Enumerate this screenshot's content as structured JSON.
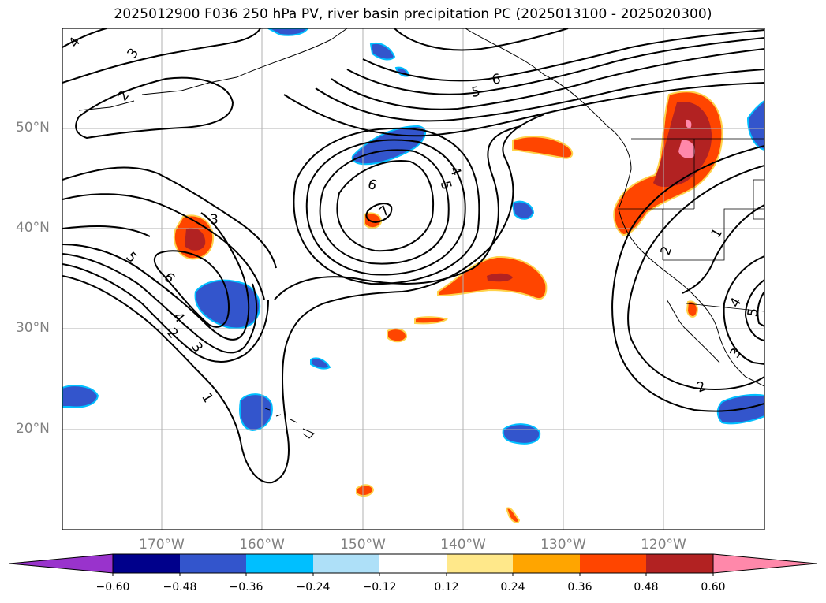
{
  "title": "2025012900 F036 250 hPa PV, river basin precipitation PC (2025013100 - 2025020300)",
  "map": {
    "latitude_labels": [
      "50°N",
      "40°N",
      "30°N",
      "20°N"
    ],
    "longitude_labels": [
      "170°W",
      "160°W",
      "150°W",
      "140°W",
      "130°W",
      "120°W"
    ],
    "pv_contour_labels": [
      "1",
      "2",
      "3",
      "4",
      "5",
      "6",
      "7"
    ],
    "contour_color": "#000000",
    "grid_color": "#b0b0b0"
  },
  "colorbar": {
    "tick_labels": [
      "−0.60",
      "−0.48",
      "−0.36",
      "−0.24",
      "−0.12",
      "0.12",
      "0.24",
      "0.36",
      "0.48",
      "0.60"
    ],
    "colors": [
      "#9933cc",
      "#00008b",
      "#3355cc",
      "#00bfff",
      "#aee0f8",
      "#ffffff",
      "#ffe88a",
      "#ffa500",
      "#ff4500",
      "#b22222",
      "#ff88aa"
    ],
    "extend": "both"
  }
}
